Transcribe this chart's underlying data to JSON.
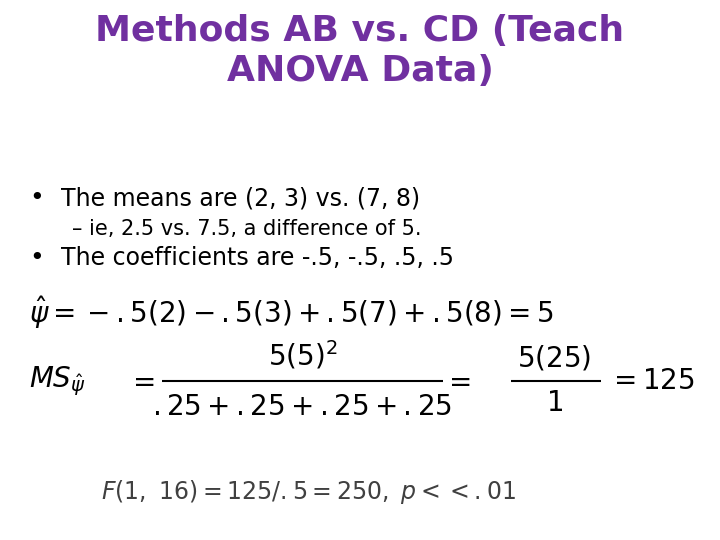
{
  "title_line1": "Methods AB vs. CD (Teach",
  "title_line2": "ANOVA Data)",
  "title_color": "#7030A0",
  "title_fontsize": 26,
  "background_color": "#ffffff",
  "bullet1": "The means are (2, 3) vs. (7, 8)",
  "sub_bullet1": "– ie, 2.5 vs. 7.5, a difference of 5.",
  "bullet2": "The coefficients are -.5, -.5, .5, .5",
  "text_color": "#000000",
  "dark_gray": "#404040",
  "body_fontsize": 17,
  "sub_fontsize": 15,
  "formula_fontsize": 18,
  "ms_fontsize": 20
}
